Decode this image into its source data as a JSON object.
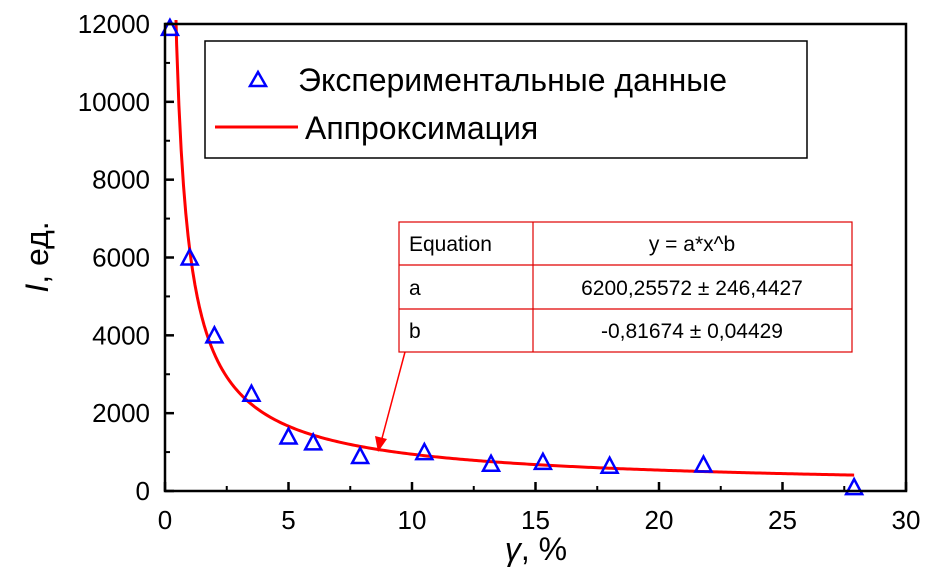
{
  "chart_data": {
    "type": "scatter",
    "xlabel": {
      "var": "γ",
      "unit": ", %"
    },
    "ylabel": {
      "var": "I",
      "unit": ", ед."
    },
    "xlim": [
      0,
      30
    ],
    "ylim": [
      0,
      12000
    ],
    "x_ticks": [
      0,
      5,
      10,
      15,
      20,
      25,
      30
    ],
    "y_ticks": [
      0,
      2000,
      4000,
      6000,
      8000,
      10000,
      12000
    ],
    "grid": false,
    "legend_position": "top-center",
    "series": [
      {
        "name": "Экспериментальные данные",
        "kind": "scatter",
        "marker": "triangle",
        "color": "#0000ff",
        "points": [
          [
            0.2,
            11900
          ],
          [
            1.0,
            6000
          ],
          [
            2.0,
            4000
          ],
          [
            3.5,
            2500
          ],
          [
            5.0,
            1400
          ],
          [
            6.0,
            1250
          ],
          [
            7.9,
            900
          ],
          [
            10.5,
            1000
          ],
          [
            13.2,
            700
          ],
          [
            15.3,
            750
          ],
          [
            18.0,
            650
          ],
          [
            21.8,
            680
          ],
          [
            27.9,
            100
          ]
        ]
      },
      {
        "name": "Аппроксимация",
        "kind": "line",
        "color": "#ff0000",
        "model": "y = a*x^b",
        "a": 6200.25572,
        "b": -0.81674,
        "x_range": [
          0.1,
          27.9
        ]
      }
    ],
    "annotation": {
      "header": [
        "Equation",
        "y = a*x^b"
      ],
      "rows": [
        [
          "a",
          "6200,25572 ± 246,4427"
        ],
        [
          "b",
          "-0,81674 ± 0,04429"
        ]
      ],
      "border_color": "#e00000",
      "arrow_to": [
        8.5,
        1080
      ]
    }
  }
}
